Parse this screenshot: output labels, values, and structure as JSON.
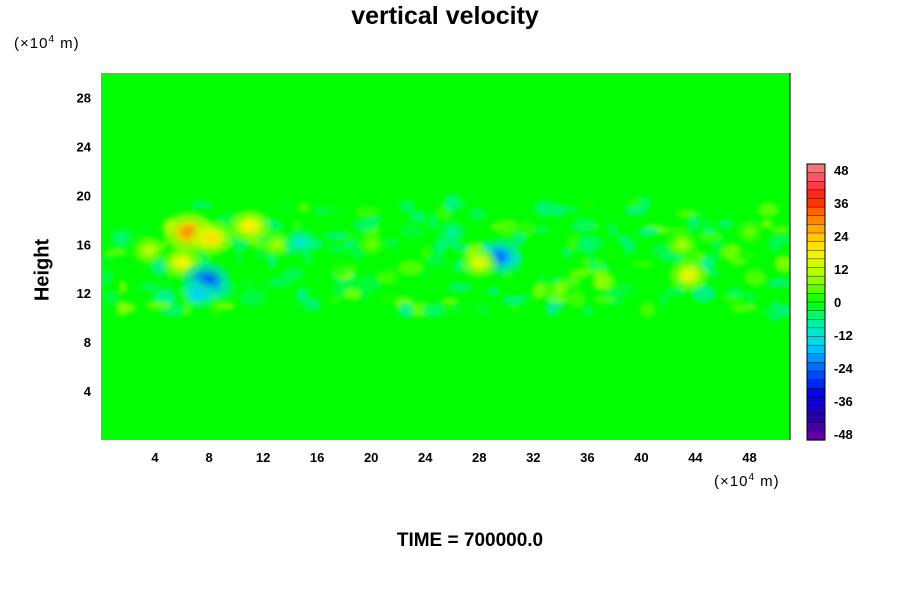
{
  "chart_data": {
    "type": "heatmap",
    "title": "vertical velocity",
    "ylabel": "Height",
    "y_unit_text": "(×10",
    "y_unit_exp": "4",
    "y_unit_m": " m)",
    "x_unit_text": "(×10",
    "x_unit_exp": "4",
    "x_unit_m": " m)",
    "xlim": [
      0,
      51
    ],
    "ylim": [
      0,
      30
    ],
    "x_ticks": [
      4,
      8,
      12,
      16,
      20,
      24,
      28,
      32,
      36,
      40,
      44,
      48
    ],
    "y_ticks": [
      4,
      8,
      12,
      16,
      20,
      24,
      28
    ],
    "colorbar": {
      "ticks": [
        48,
        36,
        24,
        12,
        0,
        -12,
        -24,
        -36,
        -48
      ],
      "range": [
        -48,
        48
      ],
      "levels": 32
    },
    "background_value": 0,
    "features": [
      {
        "x": 6.5,
        "y": 17,
        "value": 30
      },
      {
        "x": 8.2,
        "y": 16.5,
        "value": 22
      },
      {
        "x": 11,
        "y": 17.5,
        "value": 20
      },
      {
        "x": 6,
        "y": 14.5,
        "value": 18
      },
      {
        "x": 3.5,
        "y": 15.5,
        "value": 12
      },
      {
        "x": 13,
        "y": 16,
        "value": 10
      },
      {
        "x": 7.8,
        "y": 13,
        "value": -28
      },
      {
        "x": 7.2,
        "y": 12,
        "value": -16
      },
      {
        "x": 14.8,
        "y": 16.2,
        "value": -12
      },
      {
        "x": 29.5,
        "y": 15,
        "value": -24
      },
      {
        "x": 28,
        "y": 14.5,
        "value": 16
      },
      {
        "x": 26,
        "y": 17,
        "value": -8
      },
      {
        "x": 43.5,
        "y": 13.5,
        "value": 18
      },
      {
        "x": 43,
        "y": 16,
        "value": 10
      },
      {
        "x": 36,
        "y": 16,
        "value": -6
      },
      {
        "x": 48,
        "y": 17,
        "value": 6
      },
      {
        "x": 20,
        "y": 16,
        "value": 6
      },
      {
        "x": 1.5,
        "y": 16.5,
        "value": -6
      }
    ],
    "time_label": "TIME = 700000.0"
  }
}
